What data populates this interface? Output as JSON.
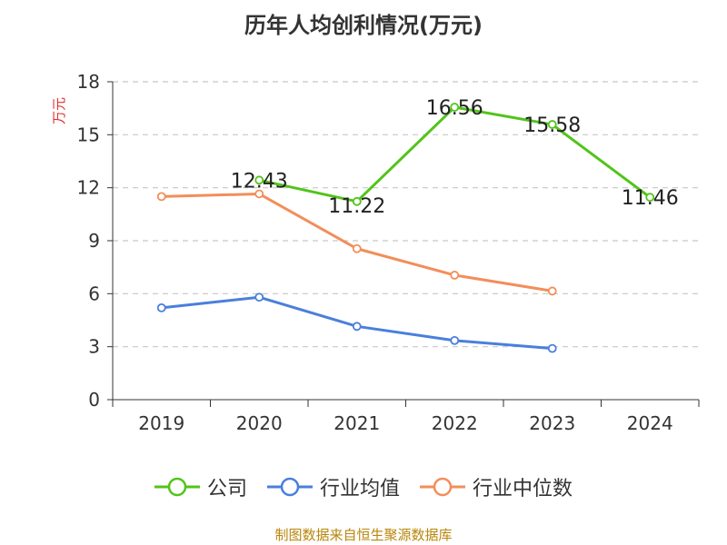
{
  "chart_data": {
    "type": "line",
    "title": "历年人均创利情况(万元)",
    "ylabel": "万元",
    "xlabel": "",
    "categories": [
      "2019",
      "2020",
      "2021",
      "2022",
      "2023",
      "2024"
    ],
    "ylim": [
      0,
      18
    ],
    "yticks": [
      0,
      3,
      6,
      9,
      12,
      15,
      18
    ],
    "grid": true,
    "legend_position": "bottom",
    "series": [
      {
        "name": "公司",
        "color": "#52c41a",
        "values": [
          null,
          12.43,
          11.22,
          16.56,
          15.58,
          11.46
        ],
        "data_labels": [
          null,
          "12.43",
          "11.22",
          "16.56",
          "15.58",
          "11.46"
        ]
      },
      {
        "name": "行业均值",
        "color": "#4a7fdc",
        "values": [
          5.2,
          5.8,
          4.15,
          3.35,
          2.9,
          null
        ],
        "data_labels": []
      },
      {
        "name": "行业中位数",
        "color": "#f28e5a",
        "values": [
          11.5,
          11.65,
          8.55,
          7.05,
          6.15,
          null
        ],
        "data_labels": []
      }
    ]
  },
  "source": "制图数据来自恒生聚源数据库"
}
